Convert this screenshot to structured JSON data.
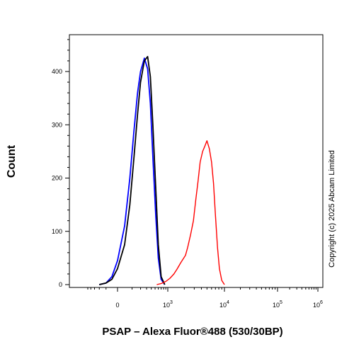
{
  "chart_data": {
    "type": "line",
    "title": "",
    "xlabel": "PSAP – Alexa Fluor®488 (530/30BP)",
    "ylabel": "Count",
    "xscale": "biexponential",
    "yscale": "linear",
    "ylim": [
      0,
      470
    ],
    "grid": false,
    "legend": "none",
    "x_tick_labels": [
      "0",
      "10",
      "10",
      "10",
      "10"
    ],
    "x_tick_exponents": [
      "",
      "3",
      "4",
      "5",
      "6"
    ],
    "x_tick_values": [
      0,
      1000,
      10000,
      100000,
      1000000
    ],
    "y_tick_labels": [
      "0",
      "100",
      "200",
      "300",
      "400"
    ],
    "y_tick_values": [
      0,
      100,
      200,
      300,
      400
    ],
    "series": [
      {
        "color": "#0000ff",
        "x": [
          -200,
          -100,
          -40,
          0,
          40,
          80,
          120,
          160,
          200,
          260,
          320,
          380,
          440,
          520,
          600,
          700,
          850
        ],
        "y": [
          0,
          3,
          15,
          45,
          110,
          200,
          290,
          360,
          400,
          425,
          405,
          340,
          240,
          130,
          50,
          10,
          0
        ]
      },
      {
        "color": "#000000",
        "x": [
          -200,
          -100,
          -40,
          0,
          40,
          80,
          120,
          160,
          200,
          260,
          320,
          380,
          440,
          520,
          600,
          700,
          850
        ],
        "y": [
          0,
          3,
          10,
          30,
          75,
          150,
          240,
          320,
          380,
          420,
          428,
          390,
          300,
          180,
          75,
          15,
          0
        ]
      },
      {
        "color": "#ff0000",
        "x": [
          550,
          700,
          900,
          1100,
          1300,
          1500,
          1700,
          1900,
          2100,
          2300,
          2600,
          2900,
          3200,
          3500,
          3800,
          4200,
          4600,
          5000,
          5500,
          6000,
          6500,
          7000,
          7600,
          8200,
          9000,
          10000
        ],
        "y": [
          0,
          2,
          6,
          12,
          20,
          30,
          40,
          48,
          55,
          70,
          95,
          120,
          160,
          195,
          230,
          250,
          260,
          270,
          255,
          230,
          190,
          130,
          70,
          30,
          8,
          0
        ]
      }
    ],
    "side_text": "Copyright (c) 2025 Abcam Limited"
  }
}
